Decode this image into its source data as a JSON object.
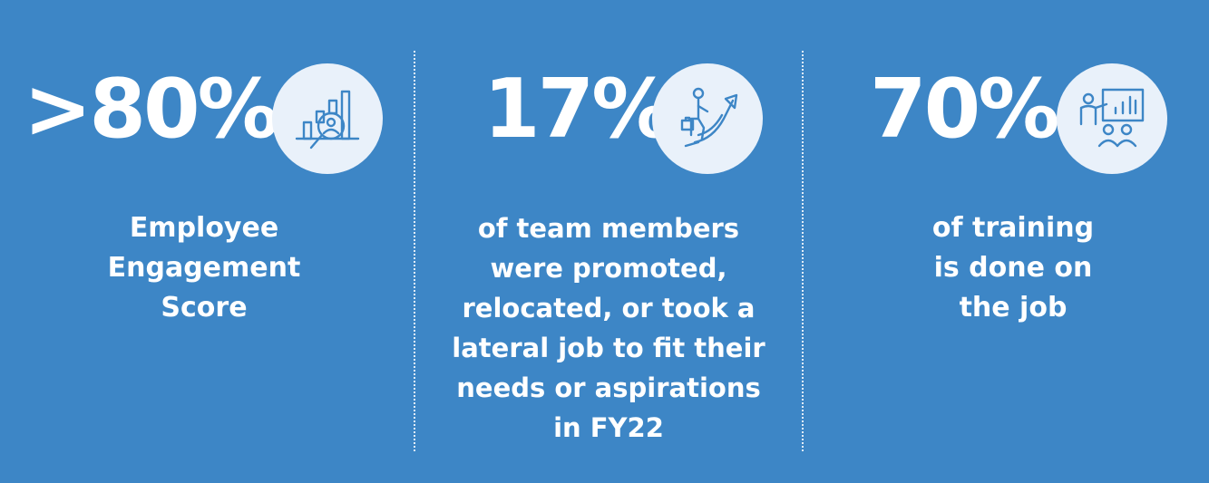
{
  "stats": [
    {
      "value": ">80%",
      "caption": "Employee\nEngagement\nScore",
      "icon": "analytics-magnifier-icon"
    },
    {
      "value": "17%",
      "caption": "of team members\nwere promoted,\nrelocated, or took a\nlateral job to fit their\nneeds or aspirations\nin FY22",
      "icon": "career-growth-icon"
    },
    {
      "value": "70%",
      "caption": "of training\nis done on\nthe job",
      "icon": "training-presentation-icon"
    }
  ],
  "colors": {
    "background": "#3d86c6",
    "icon_circle": "#e9f1fa",
    "icon_stroke": "#3d86c6",
    "text": "#ffffff"
  }
}
